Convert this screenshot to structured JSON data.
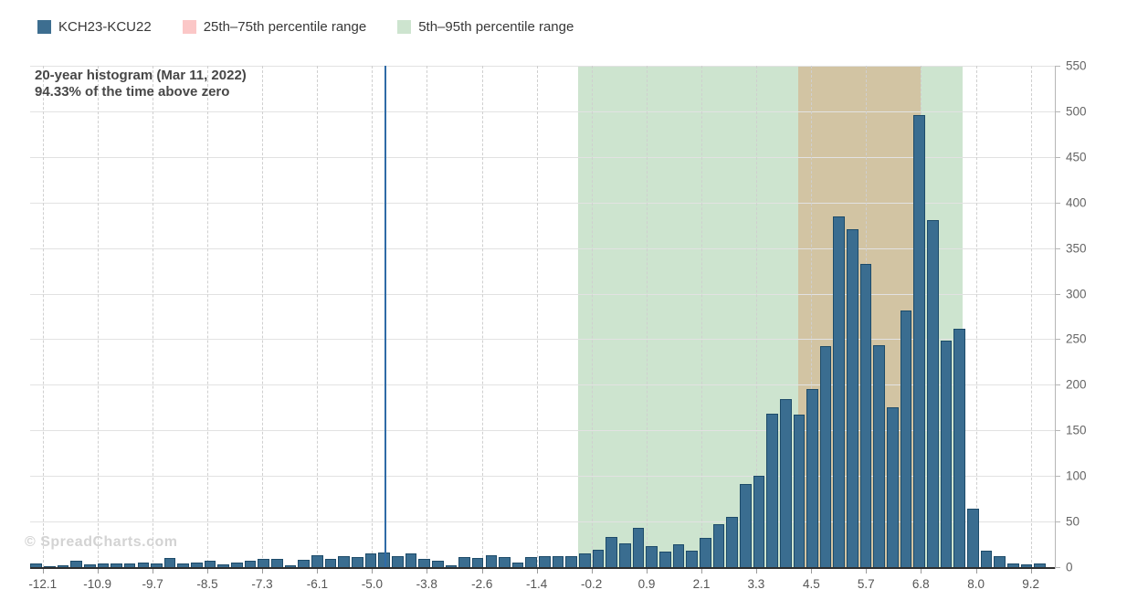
{
  "legend": {
    "items": [
      {
        "label": "KCH23-KCU22",
        "color": "#3d6e90",
        "kind": "series"
      },
      {
        "label": "25th–75th percentile range",
        "color": "#fbc7c7",
        "kind": "band"
      },
      {
        "label": "5th–95th percentile range",
        "color": "#cde4cf",
        "kind": "band"
      }
    ]
  },
  "watermark": "© SpreadCharts.com",
  "chart_data": {
    "type": "bar",
    "subtype": "histogram",
    "title": "20-year histogram (Mar 11, 2022)",
    "subtitle": "94.33% of the time above zero",
    "series_name": "KCH23-KCU22",
    "x_axis": {
      "domain": [
        -12.37,
        9.72
      ],
      "tick_labels": [
        "-12.1",
        "-10.9",
        "-9.7",
        "-8.5",
        "-7.3",
        "-6.1",
        "-5.0",
        "-3.8",
        "-2.6",
        "-1.4",
        "-0.2",
        "0.9",
        "2.1",
        "3.3",
        "4.5",
        "5.7",
        "6.8",
        "8.0",
        "9.2"
      ],
      "tick_values": [
        -12.1,
        -10.92,
        -9.73,
        -8.55,
        -7.37,
        -6.18,
        -5.0,
        -3.82,
        -2.63,
        -1.45,
        -0.27,
        0.92,
        2.1,
        3.28,
        4.47,
        5.65,
        6.83,
        8.02,
        9.2
      ],
      "gridline_style": "dashed"
    },
    "y_axis": {
      "min": 0,
      "max": 550,
      "tick_step": 50,
      "position": "right",
      "tick_labels": [
        "0",
        "50",
        "100",
        "150",
        "200",
        "250",
        "300",
        "350",
        "400",
        "450",
        "500",
        "550"
      ],
      "gridline_style": "solid"
    },
    "histogram": {
      "bin_start_value": -12.24,
      "bin_step_value": 0.2885,
      "bar_visual_width_value": 0.249,
      "counts": [
        4,
        1,
        2,
        7,
        3,
        4,
        4,
        4,
        5,
        4,
        10,
        4,
        5,
        7,
        3,
        5,
        7,
        9,
        9,
        2,
        8,
        13,
        9,
        12,
        11,
        15,
        16,
        12,
        15,
        9,
        7,
        2,
        11,
        10,
        13,
        11,
        5,
        11,
        12,
        12,
        12,
        15,
        19,
        33,
        26,
        43,
        23,
        17,
        25,
        18,
        32,
        47,
        55,
        91,
        100,
        168,
        184,
        167,
        195,
        242,
        385,
        371,
        333,
        243,
        175,
        282,
        496,
        381,
        248,
        261,
        64,
        18,
        12,
        4,
        3,
        4
      ]
    },
    "bands": [
      {
        "name": "5th–95th percentile range",
        "from": -0.56,
        "to": 7.74,
        "color": "#cde4cf"
      },
      {
        "name": "25th–75th percentile range",
        "from": 4.19,
        "to": 6.83,
        "color": "#d2c4a3",
        "legend_color": "#fbc7c7"
      }
    ],
    "current_value_line": {
      "value": -4.71,
      "color": "#2f6ba6"
    }
  },
  "colors": {
    "bar_fill": "#3a6d90",
    "bar_border": "#1d4b69",
    "background": "#ffffff",
    "h_grid": "#e2e2e2",
    "v_grid": "#cfcfcf",
    "axis_line": "#b6b6b6",
    "baseline": "#2e2e2e",
    "x_label": "#555555",
    "y_label": "#666666",
    "title_text": "#474747",
    "legend_text": "#383838",
    "watermark_text": "#d3d3d3"
  }
}
